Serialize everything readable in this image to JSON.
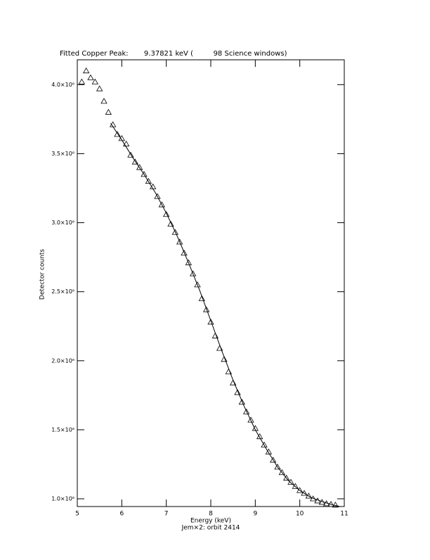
{
  "chart_data": {
    "type": "scatter",
    "title": "Fitted Copper Peak:       9.37821 keV (         98 Science windows)",
    "xlabel": "Energy (keV)",
    "subtitle": "Jem×2: orbit 2414",
    "ylabel": "Detector counts",
    "xlim": [
      5,
      11
    ],
    "xticks": [
      5,
      6,
      7,
      8,
      9,
      10,
      11
    ],
    "ylim": [
      944000,
      4180000
    ],
    "yticks": [
      {
        "value": 1000000,
        "label": "1.0×10⁶"
      },
      {
        "value": 1500000,
        "label": "1.5×10⁶"
      },
      {
        "value": 2000000,
        "label": "2.0×10⁶"
      },
      {
        "value": 2500000,
        "label": "2.5×10⁶"
      },
      {
        "value": 3000000,
        "label": "3.0×10⁶"
      },
      {
        "value": 3500000,
        "label": "3.5×10⁶"
      },
      {
        "value": 4000000,
        "label": "4.0×10⁶"
      }
    ],
    "series": [
      {
        "type": "scatter",
        "color": "#000000",
        "x": [
          5.1,
          5.2,
          5.3,
          5.4,
          5.5,
          5.6,
          5.7,
          5.8,
          5.9,
          6.0,
          6.1,
          6.2,
          6.3,
          6.4,
          6.5,
          6.6,
          6.7,
          6.8,
          6.9,
          7.0,
          7.1,
          7.2,
          7.3,
          7.4,
          7.5,
          7.6,
          7.7,
          7.8,
          7.9,
          8.0,
          8.1,
          8.2,
          8.3,
          8.4,
          8.5,
          8.6,
          8.7,
          8.8,
          8.9,
          9.0,
          9.1,
          9.2,
          9.3,
          9.4,
          9.5,
          9.6,
          9.7,
          9.8,
          9.9,
          10.0,
          10.1,
          10.2,
          10.3,
          10.4,
          10.5,
          10.6,
          10.7,
          10.8
        ],
        "values": [
          4020000,
          4100000,
          4050000,
          4020000,
          3970000,
          3880000,
          3800000,
          3710000,
          3640000,
          3610000,
          3570000,
          3490000,
          3440000,
          3400000,
          3350000,
          3300000,
          3260000,
          3190000,
          3130000,
          3060000,
          2990000,
          2930000,
          2860000,
          2780000,
          2710000,
          2630000,
          2550000,
          2450000,
          2370000,
          2280000,
          2180000,
          2090000,
          2010000,
          1920000,
          1840000,
          1770000,
          1700000,
          1630000,
          1570000,
          1510000,
          1450000,
          1390000,
          1340000,
          1280000,
          1230000,
          1190000,
          1150000,
          1120000,
          1090000,
          1060000,
          1040000,
          1020000,
          1000000,
          985000,
          975000,
          965000,
          960000,
          955000
        ]
      },
      {
        "type": "line",
        "color": "#000000",
        "x": [
          5.75,
          6.0,
          6.25,
          6.5,
          6.75,
          7.0,
          7.25,
          7.5,
          7.75,
          8.0,
          8.25,
          8.5,
          8.75,
          9.0,
          9.25,
          9.5,
          9.75,
          10.0,
          10.25,
          10.5,
          10.75,
          10.9
        ],
        "values": [
          3720000,
          3600000,
          3470000,
          3350000,
          3220000,
          3070000,
          2900000,
          2710000,
          2510000,
          2290000,
          2070000,
          1860000,
          1670000,
          1500000,
          1360000,
          1230000,
          1130000,
          1060000,
          1010000,
          980000,
          955000,
          945000
        ]
      }
    ]
  }
}
